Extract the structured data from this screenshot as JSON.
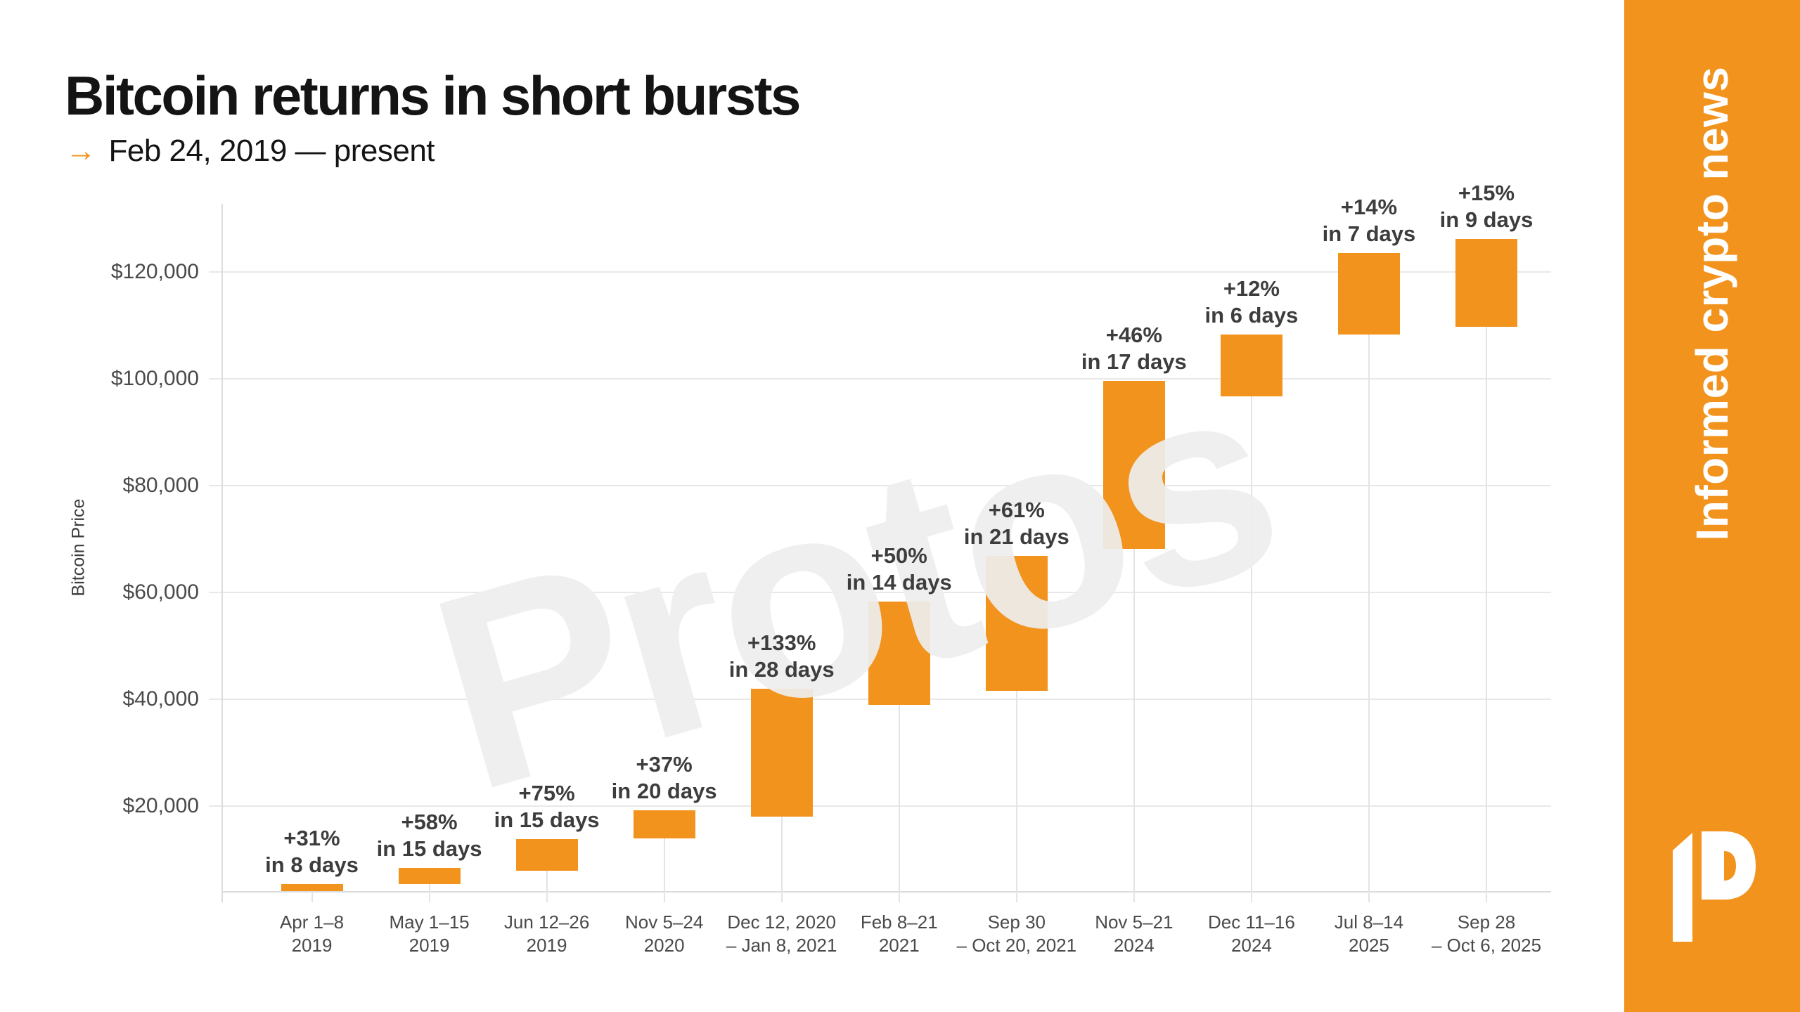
{
  "header": {
    "title": "Bitcoin returns in short bursts",
    "arrow_glyph": "→",
    "subtitle": "Feb 24, 2019 — present"
  },
  "chart_data": {
    "type": "bar",
    "subtype": "floating-range-columns",
    "title": "Bitcoin returns in short bursts",
    "period": "Feb 24, 2019 — present",
    "ylabel": "Bitcoin Price",
    "ylim": [
      3950,
      132800
    ],
    "grid": true,
    "bar_color": "#F2931E",
    "y_ticks": [
      {
        "label": "$20,000",
        "value": 20000
      },
      {
        "label": "$40,000",
        "value": 40000
      },
      {
        "label": "$60,000",
        "value": 60000
      },
      {
        "label": "$80,000",
        "value": 80000
      },
      {
        "label": "$100,000",
        "value": 100000
      },
      {
        "label": "$120,000",
        "value": 120000
      }
    ],
    "bars": [
      {
        "date_line1": "Apr 1–8",
        "date_line2": "2019",
        "low": 4100,
        "high": 5370,
        "gain_label": "+31%",
        "duration_label": "in 8 days",
        "gain_pct": 31,
        "days": 8
      },
      {
        "date_line1": "May 1–15",
        "date_line2": "2019",
        "low": 5350,
        "high": 8450,
        "gain_label": "+58%",
        "duration_label": "in 15 days",
        "gain_pct": 58,
        "days": 15
      },
      {
        "date_line1": "Jun 12–26",
        "date_line2": "2019",
        "low": 7900,
        "high": 13830,
        "gain_label": "+75%",
        "duration_label": "in 15 days",
        "gain_pct": 75,
        "days": 15
      },
      {
        "date_line1": "Nov 5–24",
        "date_line2": "2020",
        "low": 14000,
        "high": 19180,
        "gain_label": "+37%",
        "duration_label": "in 20 days",
        "gain_pct": 37,
        "days": 20
      },
      {
        "date_line1": "Dec 12, 2020",
        "date_line2": "– Jan 8, 2021",
        "low": 18050,
        "high": 42000,
        "gain_label": "+133%",
        "duration_label": "in 28 days",
        "gain_pct": 133,
        "days": 28
      },
      {
        "date_line1": "Feb 8–21",
        "date_line2": "2021",
        "low": 38900,
        "high": 58350,
        "gain_label": "+50%",
        "duration_label": "in 14 days",
        "gain_pct": 50,
        "days": 14
      },
      {
        "date_line1": "Sep 30",
        "date_line2": "– Oct 20, 2021",
        "low": 41550,
        "high": 66900,
        "gain_label": "+61%",
        "duration_label": "in 21 days",
        "gain_pct": 61,
        "days": 21
      },
      {
        "date_line1": "Nov 5–21",
        "date_line2": "2024",
        "low": 68200,
        "high": 99600,
        "gain_label": "+46%",
        "duration_label": "in 17 days",
        "gain_pct": 46,
        "days": 17
      },
      {
        "date_line1": "Dec 11–16",
        "date_line2": "2024",
        "low": 96700,
        "high": 108300,
        "gain_label": "+12%",
        "duration_label": "in 6 days",
        "gain_pct": 12,
        "days": 6
      },
      {
        "date_line1": "Jul 8–14",
        "date_line2": "2025",
        "low": 108300,
        "high": 123500,
        "gain_label": "+14%",
        "duration_label": "in 7 days",
        "gain_pct": 14,
        "days": 7
      },
      {
        "date_line1": "Sep 28",
        "date_line2": "– Oct 6, 2025",
        "low": 109700,
        "high": 126200,
        "gain_label": "+15%",
        "duration_label": "in 9 days",
        "gain_pct": 15,
        "days": 9
      }
    ]
  },
  "watermark": {
    "text": "Protos"
  },
  "sidebar": {
    "tagline": "Informed crypto news",
    "background": "#F2931E",
    "logo": "protos-ip-logo"
  }
}
